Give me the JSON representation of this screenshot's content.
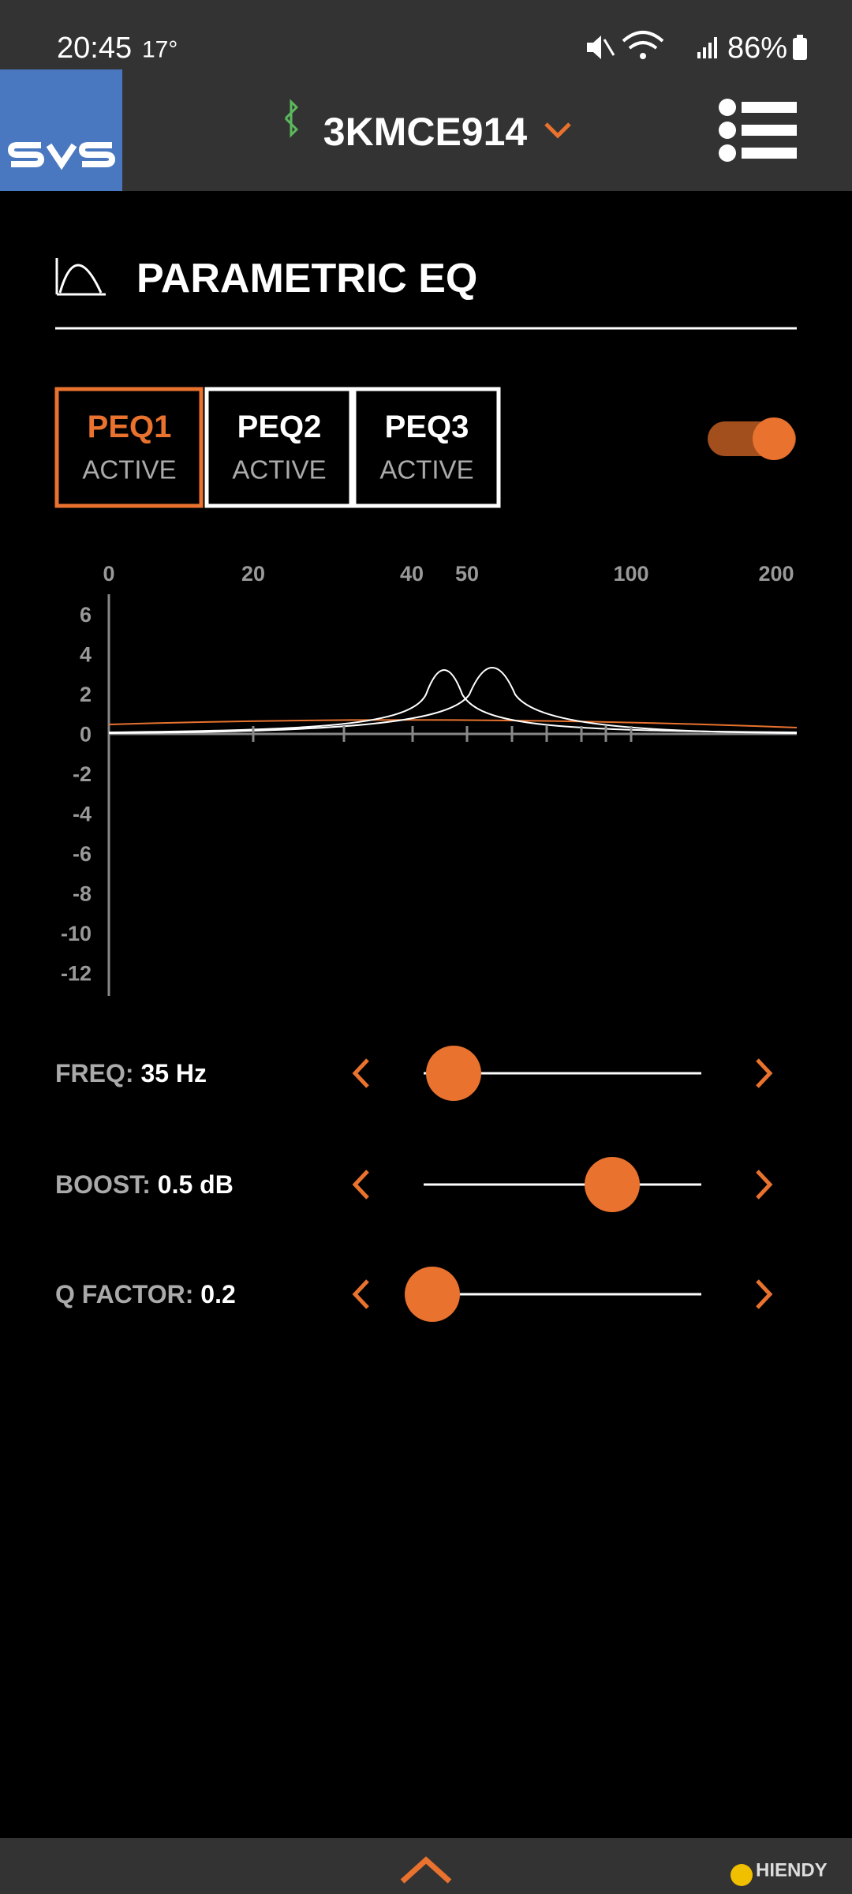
{
  "status_bar": {
    "time": "20:45",
    "temperature": "17°",
    "battery": "86%"
  },
  "header": {
    "device": "3KMCE914"
  },
  "section": {
    "title": "PARAMETRIC EQ"
  },
  "tabs": [
    {
      "label": "PEQ1",
      "status": "ACTIVE"
    },
    {
      "label": "PEQ2",
      "status": "ACTIVE"
    },
    {
      "label": "PEQ3",
      "status": "ACTIVE"
    }
  ],
  "graph": {
    "x_labels": [
      "0",
      "20",
      "40",
      "50",
      "100",
      "200"
    ],
    "y_labels": [
      "6",
      "4",
      "2",
      "0",
      "-2",
      "-4",
      "-6",
      "-8",
      "-10",
      "-12"
    ]
  },
  "controls": [
    {
      "label": "FREQ:",
      "value": "35 Hz"
    },
    {
      "label": "BOOST:",
      "value": "0.5 dB"
    },
    {
      "label": "Q FACTOR:",
      "value": "0.2"
    }
  ],
  "footer": {
    "watermark": "HIENDY"
  }
}
